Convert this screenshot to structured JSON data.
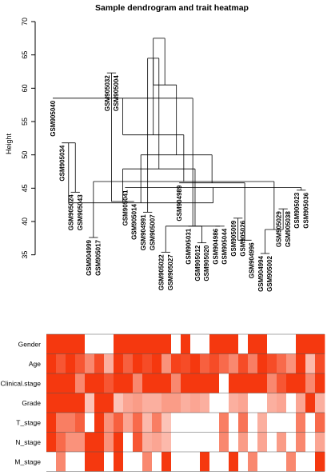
{
  "chart_data": {
    "type": "dendrogram+heatmap",
    "title": "Sample dendrogram and trait heatmap",
    "ylabel": "Height",
    "ylim": [
      34,
      70
    ],
    "yticks": [
      35,
      40,
      45,
      50,
      55,
      60,
      65,
      70
    ],
    "leaves": [
      "GSM905040",
      "GSM905034",
      "GSM905024",
      "GSM905043",
      "GSM904999",
      "GSM905017",
      "GSM905032",
      "GSM905004",
      "GSM905041",
      "GSM905014",
      "GSM904991",
      "GSM905007",
      "GSM905022",
      "GSM905027",
      "GSM904989",
      "GSM905031",
      "GSM905012",
      "GSM905020",
      "GSM904986",
      "GSM905044",
      "GSM905009",
      "GSM905026",
      "GSM904996",
      "GSM904994",
      "GSM905002",
      "GSM905029",
      "GSM905038",
      "GSM905023",
      "GSM905036"
    ],
    "leaf_heights": [
      58.5,
      51.8,
      44.4,
      44.4,
      37.6,
      37.6,
      62.3,
      62.3,
      45.1,
      43.0,
      41.4,
      41.4,
      35.4,
      35.4,
      45.8,
      39.3,
      36.8,
      36.8,
      39.3,
      39.3,
      40.5,
      40.5,
      37.2,
      35.2,
      35.2,
      41.9,
      41.9,
      44.7,
      44.7
    ],
    "traits": [
      "Gender",
      "Age",
      "Clinical.stage",
      "Grade",
      "T_stage",
      "N_stage",
      "M_stage"
    ],
    "trait_color_scale": [
      "#ffffff",
      "#f5380f"
    ],
    "trait_values": [
      [
        1,
        1,
        1,
        1,
        0,
        0,
        0,
        1,
        1,
        1,
        1,
        1,
        1,
        0,
        1,
        0,
        0,
        1,
        1,
        1,
        0,
        1,
        1,
        0,
        0,
        0,
        1,
        1,
        1
      ],
      [
        1,
        0.85,
        1,
        0.85,
        0.6,
        0.9,
        0.4,
        1,
        0.8,
        1,
        0.9,
        1,
        0.55,
        0.95,
        0.9,
        1,
        0.8,
        0.9,
        0.75,
        0.6,
        0.9,
        0.65,
        1,
        0.9,
        0.75,
        0.55,
        1,
        0.35,
        0.9
      ],
      [
        1,
        1,
        1,
        0.6,
        1,
        1,
        0.85,
        1,
        1,
        0.6,
        1,
        1,
        1,
        0.6,
        1,
        1,
        1,
        1,
        0,
        1,
        1,
        1,
        1,
        0.6,
        0.85,
        1,
        1,
        0.6,
        1
      ],
      [
        1,
        1,
        1,
        1,
        0.3,
        1,
        1,
        0.3,
        0.45,
        0.5,
        0.4,
        0.4,
        0.5,
        0.5,
        0.4,
        0.45,
        0.4,
        0,
        0,
        0.4,
        0.45,
        0,
        0,
        0.4,
        0.45,
        0,
        0.45,
        1,
        0.4
      ],
      [
        1,
        0.65,
        0.65,
        0.8,
        0,
        1,
        0.55,
        0.8,
        0.45,
        0.75,
        0.35,
        0.65,
        0.3,
        0,
        0,
        0,
        0,
        0,
        0.65,
        0,
        0.7,
        0,
        0.4,
        0,
        0,
        0,
        0.65,
        0,
        0.75
      ],
      [
        1,
        0.75,
        0.55,
        0.55,
        1,
        1,
        0.55,
        1,
        0,
        0.85,
        0.4,
        0.45,
        0.35,
        0,
        0,
        0,
        0,
        0,
        0.6,
        0,
        0.5,
        0,
        0.45,
        0,
        0.5,
        0,
        0.6,
        0,
        0.45
      ],
      [
        0,
        0.6,
        0,
        0,
        1,
        1,
        0,
        1,
        0,
        0,
        0.6,
        0,
        1,
        0,
        0,
        0,
        1,
        0,
        0,
        1,
        0,
        0.6,
        0,
        0,
        0,
        0.6,
        0,
        0,
        1
      ]
    ]
  }
}
